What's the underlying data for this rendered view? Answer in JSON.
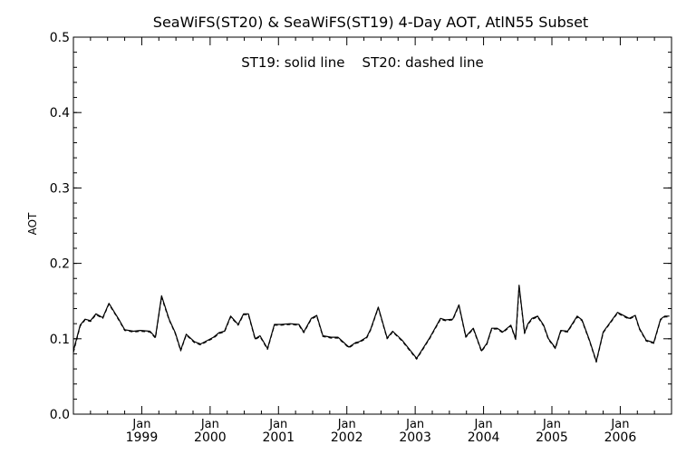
{
  "chart_data": {
    "type": "line",
    "title": "SeaWiFS(ST20) & SeaWiFS(ST19) 4-Day AOT, AtlN55 Subset",
    "annotation": "ST19: solid line    ST20: dashed line",
    "ylabel": "AOT",
    "xlabel": "",
    "ylim": [
      0.0,
      0.5
    ],
    "xlim": [
      1998.0,
      2006.75
    ],
    "y_ticks": [
      "0.0",
      "0.1",
      "0.2",
      "0.3",
      "0.4",
      "0.5"
    ],
    "x_ticks": [
      {
        "month": "Jan",
        "year": "1999",
        "x": 1999.0
      },
      {
        "month": "Jan",
        "year": "2000",
        "x": 2000.0
      },
      {
        "month": "Jan",
        "year": "2001",
        "x": 2001.0
      },
      {
        "month": "Jan",
        "year": "2002",
        "x": 2002.0
      },
      {
        "month": "Jan",
        "year": "2003",
        "x": 2003.0
      },
      {
        "month": "Jan",
        "year": "2004",
        "x": 2004.0
      },
      {
        "month": "Jan",
        "year": "2005",
        "x": 2005.0
      },
      {
        "month": "Jan",
        "year": "2006",
        "x": 2006.0
      }
    ],
    "grid": false,
    "series": [
      {
        "name": "ST19",
        "style": "solid",
        "x": [
          1998.0,
          1998.1,
          1998.17,
          1998.25,
          1998.33,
          1998.43,
          1998.52,
          1998.67,
          1998.75,
          1998.88,
          1998.98,
          1999.12,
          1999.2,
          1999.29,
          1999.4,
          1999.49,
          1999.57,
          1999.65,
          1999.77,
          1999.86,
          2000.05,
          2000.13,
          2000.21,
          2000.3,
          2000.41,
          2000.49,
          2000.56,
          2000.66,
          2000.73,
          2000.84,
          2000.94,
          2001.04,
          2001.17,
          2001.3,
          2001.37,
          2001.48,
          2001.56,
          2001.65,
          2001.77,
          2001.87,
          2002.03,
          2002.13,
          2002.18,
          2002.29,
          2002.35,
          2002.46,
          2002.59,
          2002.67,
          2002.81,
          2003.02,
          2003.21,
          2003.37,
          2003.44,
          2003.55,
          2003.64,
          2003.74,
          2003.85,
          2003.97,
          2004.05,
          2004.12,
          2004.2,
          2004.28,
          2004.4,
          2004.47,
          2004.52,
          2004.6,
          2004.65,
          2004.71,
          2004.79,
          2004.88,
          2004.95,
          2005.05,
          2005.13,
          2005.23,
          2005.37,
          2005.44,
          2005.55,
          2005.65,
          2005.75,
          2005.96,
          2006.13,
          2006.22,
          2006.28,
          2006.38,
          2006.49,
          2006.59,
          2006.65,
          2006.72
        ],
        "values": [
          0.084,
          0.118,
          0.126,
          0.124,
          0.133,
          0.128,
          0.147,
          0.125,
          0.112,
          0.11,
          0.111,
          0.11,
          0.102,
          0.157,
          0.126,
          0.108,
          0.085,
          0.106,
          0.096,
          0.093,
          0.102,
          0.108,
          0.11,
          0.13,
          0.119,
          0.133,
          0.133,
          0.1,
          0.104,
          0.087,
          0.119,
          0.119,
          0.12,
          0.119,
          0.109,
          0.127,
          0.131,
          0.104,
          0.102,
          0.102,
          0.089,
          0.095,
          0.096,
          0.102,
          0.113,
          0.142,
          0.101,
          0.11,
          0.098,
          0.074,
          0.101,
          0.127,
          0.125,
          0.126,
          0.145,
          0.103,
          0.114,
          0.084,
          0.094,
          0.114,
          0.114,
          0.109,
          0.118,
          0.1,
          0.171,
          0.108,
          0.12,
          0.127,
          0.13,
          0.118,
          0.1,
          0.088,
          0.111,
          0.11,
          0.13,
          0.125,
          0.098,
          0.07,
          0.109,
          0.135,
          0.127,
          0.131,
          0.114,
          0.098,
          0.095,
          0.126,
          0.13,
          0.13
        ]
      },
      {
        "name": "ST20",
        "style": "dashed",
        "x": [
          1998.0,
          1998.1,
          1998.17,
          1998.25,
          1998.33,
          1998.43,
          1998.52,
          1998.67,
          1998.75,
          1998.88,
          1998.98,
          1999.12,
          1999.2,
          1999.29,
          1999.4,
          1999.49,
          1999.57,
          1999.65,
          1999.77,
          1999.86,
          2000.05,
          2000.13,
          2000.21,
          2000.3,
          2000.41,
          2000.49,
          2000.56,
          2000.66,
          2000.73,
          2000.84,
          2000.94,
          2001.04,
          2001.17,
          2001.3,
          2001.37,
          2001.48,
          2001.56,
          2001.65,
          2001.77,
          2001.87,
          2002.03,
          2002.13,
          2002.18,
          2002.29,
          2002.35,
          2002.46,
          2002.59,
          2002.67,
          2002.81,
          2003.02,
          2003.21,
          2003.37,
          2003.44,
          2003.55,
          2003.64,
          2003.74,
          2003.85,
          2003.97,
          2004.05,
          2004.12,
          2004.2,
          2004.28,
          2004.4,
          2004.47,
          2004.52,
          2004.6,
          2004.65,
          2004.71,
          2004.79,
          2004.88,
          2004.95,
          2005.05,
          2005.13,
          2005.23,
          2005.37,
          2005.44,
          2005.55,
          2005.65,
          2005.75,
          2005.96,
          2006.13,
          2006.22,
          2006.28,
          2006.38,
          2006.49,
          2006.59,
          2006.65,
          2006.72
        ],
        "values": [
          0.082,
          0.117,
          0.125,
          0.123,
          0.132,
          0.127,
          0.146,
          0.124,
          0.111,
          0.109,
          0.11,
          0.109,
          0.101,
          0.155,
          0.125,
          0.107,
          0.084,
          0.105,
          0.095,
          0.092,
          0.101,
          0.107,
          0.109,
          0.129,
          0.118,
          0.132,
          0.132,
          0.099,
          0.103,
          0.086,
          0.118,
          0.118,
          0.119,
          0.118,
          0.108,
          0.126,
          0.13,
          0.103,
          0.101,
          0.101,
          0.088,
          0.094,
          0.095,
          0.101,
          0.112,
          0.141,
          0.1,
          0.109,
          0.097,
          0.073,
          0.1,
          0.126,
          0.124,
          0.125,
          0.144,
          0.102,
          0.113,
          0.083,
          0.093,
          0.113,
          0.113,
          0.108,
          0.117,
          0.099,
          0.169,
          0.107,
          0.119,
          0.126,
          0.129,
          0.117,
          0.099,
          0.087,
          0.11,
          0.109,
          0.129,
          0.124,
          0.097,
          0.069,
          0.108,
          0.134,
          0.126,
          0.13,
          0.113,
          0.097,
          0.094,
          0.125,
          0.129,
          0.129
        ]
      }
    ]
  },
  "colors": {
    "background": "#ffffff",
    "foreground": "#000000"
  }
}
